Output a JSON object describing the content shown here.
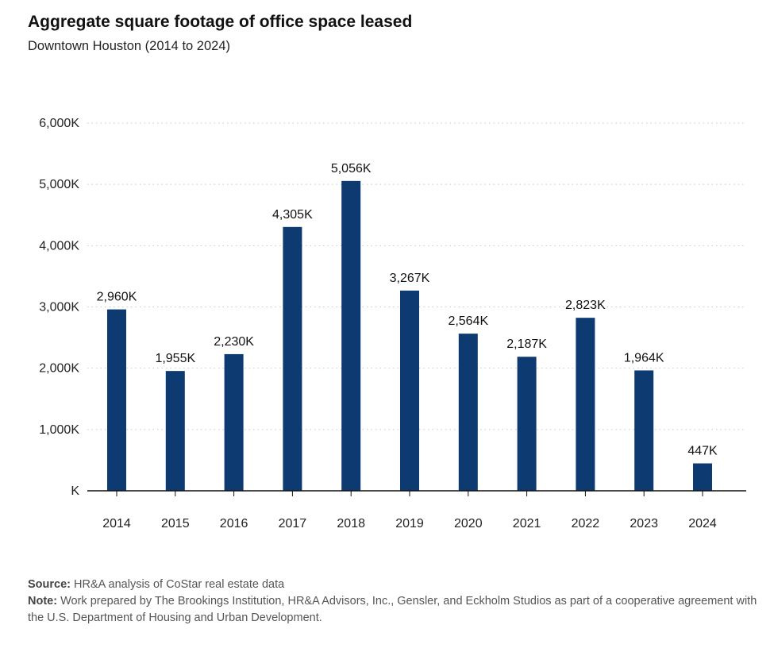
{
  "chart_data": {
    "type": "bar",
    "title": "Aggregate square footage of office space leased",
    "subtitle": "Downtown Houston (2014 to 2024)",
    "categories": [
      "2014",
      "2015",
      "2016",
      "2017",
      "2018",
      "2019",
      "2020",
      "2021",
      "2022",
      "2023",
      "2024"
    ],
    "values": [
      2960,
      1955,
      2230,
      4305,
      5056,
      3267,
      2564,
      2187,
      2823,
      1964,
      447
    ],
    "data_labels": [
      "2,960K",
      "1,955K",
      "2,230K",
      "4,305K",
      "5,056K",
      "3,267K",
      "2,564K",
      "2,187K",
      "2,823K",
      "1,964K",
      "447K"
    ],
    "y_ticks": [
      0,
      1000,
      2000,
      3000,
      4000,
      5000,
      6000
    ],
    "y_tick_labels": [
      "K",
      "1,000K",
      "2,000K",
      "3,000K",
      "4,000K",
      "5,000K",
      "6,000K"
    ],
    "ylim": [
      0,
      6000
    ],
    "grid": "horizontal dotted",
    "bar_color": "#0c3a71",
    "source_label": "Source:",
    "source_text": "HR&A analysis of CoStar real estate data",
    "note_label": "Note:",
    "note_text": "Work prepared by The Brookings Institution, HR&A Advisors, Inc., Gensler, and Eckholm Studios as part of a cooperative agreement with the U.S. Department of Housing and Urban Development."
  }
}
